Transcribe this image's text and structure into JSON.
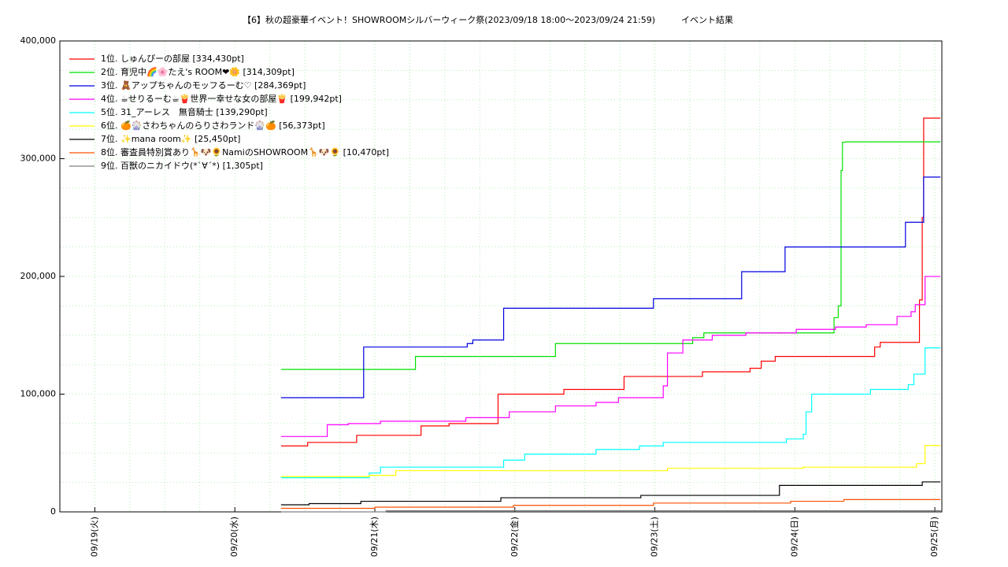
{
  "chart_data": {
    "type": "line",
    "step": "post",
    "title": "【6】秋の超豪華イベント！SHOWROOMシルバーウィーク祭(2023/09/18 18:00～2023/09/24 21:59)",
    "subtitle": "イベント結果",
    "xlim": [
      -0.25,
      6.05
    ],
    "xticks": [
      {
        "value": 0,
        "label": "09/19(火)"
      },
      {
        "value": 1,
        "label": "09/20(水)"
      },
      {
        "value": 2,
        "label": "09/21(木)"
      },
      {
        "value": 3,
        "label": "09/22(金)"
      },
      {
        "value": 4,
        "label": "09/23(土)"
      },
      {
        "value": 5,
        "label": "09/24(日)"
      },
      {
        "value": 6,
        "label": "09/25(月)"
      }
    ],
    "ylim": [
      0,
      400000
    ],
    "yticks": [
      {
        "value": 0,
        "label": "0"
      },
      {
        "value": 100000,
        "label": "100,000"
      },
      {
        "value": 200000,
        "label": "200,000"
      },
      {
        "value": 300000,
        "label": "300,000"
      },
      {
        "value": 400000,
        "label": "400,000"
      }
    ],
    "grid": true,
    "minor_grid": {
      "x": 0.25,
      "y": 25000
    },
    "legend": "upper left",
    "series": [
      {
        "name": "1位. しゅんぴーの部屋 [334,430pt]",
        "color": "#ff0000",
        "x": [
          1.33,
          1.52,
          1.87,
          2.33,
          2.53,
          2.88,
          3.35,
          3.78,
          4.34,
          4.68,
          4.76,
          4.86,
          5.57,
          5.61,
          5.89,
          5.91,
          5.92,
          6.04
        ],
        "values": [
          56000,
          59000,
          65000,
          73000,
          75000,
          100000,
          104000,
          115000,
          119000,
          122000,
          128000,
          132000,
          140000,
          144000,
          180000,
          250000,
          334430,
          334430
        ]
      },
      {
        "name": "2位. 育児中🌈🌸たえ's ROOM❤🌼 [314,309pt]",
        "color": "#00e000",
        "x": [
          1.33,
          2.29,
          3.29,
          4.27,
          4.35,
          5.28,
          5.31,
          5.33,
          5.34,
          5.36,
          6.04
        ],
        "values": [
          121000,
          132000,
          143000,
          148000,
          152000,
          165000,
          175000,
          290000,
          314000,
          314309,
          314309
        ]
      },
      {
        "name": "3位. 🧸アップちゃんのモッフるーむ♡ [284,369pt]",
        "color": "#0000e0",
        "x": [
          1.33,
          1.92,
          2.66,
          2.7,
          2.92,
          3.99,
          4.62,
          4.93,
          5.79,
          5.92,
          6.04
        ],
        "values": [
          97000,
          140000,
          143000,
          146000,
          173000,
          181000,
          204000,
          225000,
          246000,
          284369,
          284369
        ]
      },
      {
        "name": "4位. ☕せりるーむ☕🍟世界一幸せな女の部屋🍟 [199,942pt]",
        "color": "#ff00ff",
        "x": [
          1.33,
          1.66,
          1.81,
          2.04,
          2.65,
          2.96,
          3.29,
          3.58,
          3.74,
          4.06,
          4.09,
          4.2,
          4.41,
          4.65,
          5.01,
          5.29,
          5.51,
          5.73,
          5.83,
          5.86,
          5.93,
          6.04
        ],
        "values": [
          64000,
          74000,
          75000,
          77000,
          80000,
          85000,
          90000,
          93000,
          97000,
          107000,
          135000,
          146000,
          150000,
          152000,
          155000,
          157000,
          159000,
          166000,
          170000,
          176000,
          199942,
          199942
        ]
      },
      {
        "name": "5位. 31_アーレス　無音騎士 [139,290pt]",
        "color": "#00ffff",
        "x": [
          1.33,
          1.96,
          2.04,
          2.92,
          3.07,
          3.58,
          3.89,
          4.06,
          4.94,
          5.06,
          5.08,
          5.12,
          5.54,
          5.81,
          5.85,
          5.93,
          6.04
        ],
        "values": [
          29000,
          33000,
          38000,
          44000,
          49000,
          53000,
          56000,
          59000,
          62000,
          66000,
          85000,
          100000,
          104000,
          108000,
          117000,
          139290,
          139290
        ]
      },
      {
        "name": "6位. 🍊🎡さわちゃんのらりさわランド🎡🍊 [56,373pt]",
        "color": "#ffff00",
        "x": [
          1.33,
          1.96,
          2.15,
          4.09,
          5.06,
          5.87,
          5.93,
          6.04
        ],
        "values": [
          30000,
          31000,
          35000,
          37000,
          38000,
          41000,
          56373,
          56373
        ]
      },
      {
        "name": "7位. ✨mana room✨ [25,450pt]",
        "color": "#000000",
        "x": [
          1.33,
          1.53,
          1.9,
          2.9,
          3.9,
          4.89,
          5.91,
          6.04
        ],
        "values": [
          6000,
          7000,
          9000,
          12000,
          14000,
          22500,
          25450,
          25450
        ]
      },
      {
        "name": "8位. 審査員特別賞あり🦒🐶🌻NamiのSHOWROOM🦒🐶🌻 [10,470pt]",
        "color": "#ff5000",
        "x": [
          1.33,
          2.0,
          2.99,
          3.99,
          4.97,
          5.35,
          6.04
        ],
        "values": [
          3000,
          4000,
          5500,
          7500,
          9000,
          10470,
          10470
        ]
      },
      {
        "name": "9位. 百獣のニカイドウ(*`∀´*) [1,305pt]",
        "color": "#808080",
        "x": [
          1.33,
          2.08,
          6.04
        ],
        "values": [
          0,
          1000,
          1305
        ]
      }
    ]
  }
}
